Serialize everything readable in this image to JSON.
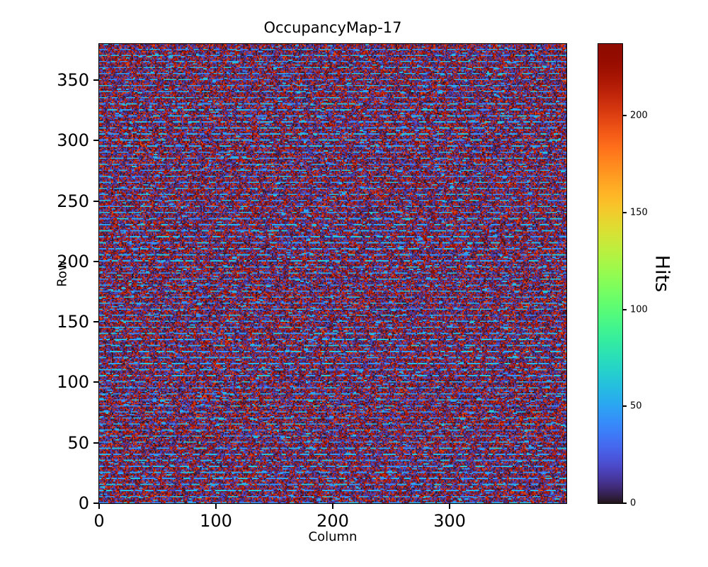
{
  "chart_data": {
    "type": "heatmap",
    "title": "OccupancyMap-17",
    "xlabel": "Column",
    "ylabel": "Row",
    "x_range": [
      0,
      400
    ],
    "y_range": [
      0,
      380
    ],
    "x_ticks": [
      0,
      100,
      200,
      300
    ],
    "y_ticks": [
      0,
      50,
      100,
      150,
      200,
      250,
      300,
      350
    ],
    "colormap": "turbo",
    "value_range": [
      0,
      237
    ],
    "colorbar": {
      "label": "Hits",
      "ticks": [
        0,
        50,
        100,
        150,
        200
      ]
    },
    "pattern": {
      "description": "dense random occupancy noise: dark low-value background (0-22 hits, dark indigo) mottled with high-value speckle (195-237 hits, dark red), plus periodic horizontal rows of light-blue dash segments (40-65 hits) roughly every 5 rows",
      "rows": 380,
      "cols": 400,
      "stripe_period": 5,
      "stripe_value_range": [
        40,
        65
      ],
      "background_value_range": [
        0,
        22
      ],
      "speckle_value_range": [
        195,
        237
      ],
      "red_speckle_fraction": 0.42,
      "off_stripe_dash_probability": 0.015,
      "seed": 17
    }
  }
}
